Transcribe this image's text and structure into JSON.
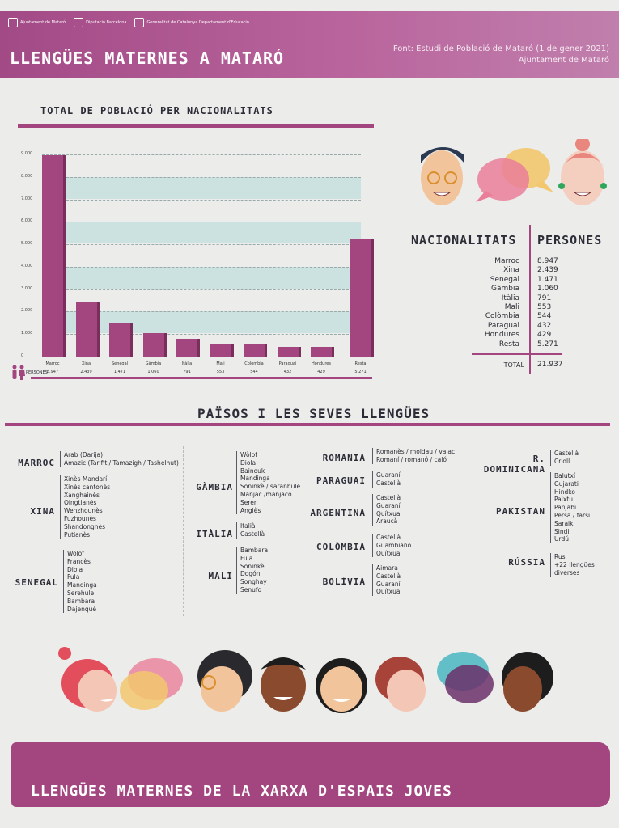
{
  "header": {
    "logos": [
      "Ajuntament de Mataró",
      "Diputació Barcelona",
      "Generalitat de Catalunya Departament d'Educació"
    ],
    "title": "LLENGÜES MATERNES A MATARÓ",
    "source_line1": "Font: Estudi de Població de Mataró (1 de gener 2021)",
    "source_line2": "Ajuntament de Mataró"
  },
  "chart_section": {
    "title": "TOTAL DE POBLACIÓ PER NACIONALITATS"
  },
  "chart_data": {
    "type": "bar",
    "title": "TOTAL DE POBLACIÓ PER NACIONALITATS",
    "categories": [
      "Marroc",
      "Xina",
      "Senegal",
      "Gàmbia",
      "Itàlia",
      "Mali",
      "Colòmbia",
      "Paraguai",
      "Hondures",
      "Resta"
    ],
    "values": [
      8947,
      2439,
      1471,
      1060,
      791,
      553,
      544,
      432,
      429,
      5271
    ],
    "value_labels": [
      "8.947",
      "2.439",
      "1.471",
      "1.060",
      "791",
      "553",
      "544",
      "432",
      "429",
      "5.271"
    ],
    "y_ticks": [
      "9.000",
      "8.000",
      "7.000",
      "6.000",
      "5.000",
      "4.000",
      "3.000",
      "2.000",
      "1.000",
      "0"
    ],
    "ylim": [
      0,
      9000
    ],
    "row_label": "PERSONES",
    "grid": true
  },
  "table": {
    "col1": "NACIONALITATS",
    "col2": "PERSONES",
    "rows": [
      {
        "name": "Marroc",
        "value": "8.947"
      },
      {
        "name": "Xina",
        "value": "2.439"
      },
      {
        "name": "Senegal",
        "value": "1.471"
      },
      {
        "name": "Gàmbia",
        "value": "1.060"
      },
      {
        "name": "Itàlia",
        "value": "791"
      },
      {
        "name": "Mali",
        "value": "553"
      },
      {
        "name": "Colòmbia",
        "value": "544"
      },
      {
        "name": "Paraguai",
        "value": "432"
      },
      {
        "name": "Hondures",
        "value": "429"
      },
      {
        "name": "Resta",
        "value": "5.271"
      }
    ],
    "total_label": "TOTAL",
    "total_value": "21.937"
  },
  "languages_section": {
    "title": "PAÏSOS I LES SEVES LLENGÜES"
  },
  "countries": {
    "marroc": {
      "name": "MARROC",
      "langs": [
        "Àrab (Darija)",
        "Amazic (Tarifit / Tamazigh / Tashelhut)"
      ]
    },
    "xina": {
      "name": "XINA",
      "langs": [
        "Xinès Mandarí",
        "Xinès cantonès",
        "Xanghainès",
        "Qingtianès",
        "Wenzhounès",
        "Fuzhounès",
        "Shandongnès",
        "Putianès"
      ]
    },
    "senegal": {
      "name": "SENEGAL",
      "langs": [
        "Wolof",
        "Francès",
        "Diola",
        "Fula",
        "Mandinga",
        "Serehule",
        "Bambara",
        "Dajenqué"
      ]
    },
    "gambia": {
      "name": "GÀMBIA",
      "langs": [
        "Wòlof",
        "Diola",
        "Bainouk",
        "Mandinga",
        "Soninkè / saranhule",
        "Manjac /manjaco",
        "Serer",
        "Anglès"
      ]
    },
    "italia": {
      "name": "ITÀLIA",
      "langs": [
        "Italià",
        "Castellà"
      ]
    },
    "mali": {
      "name": "MALI",
      "langs": [
        "Bambara",
        "Fula",
        "Soninkè",
        "Dogón",
        "Songhay",
        "Senufo"
      ]
    },
    "romania": {
      "name": "ROMANIA",
      "langs": [
        "Romanès / moldau / valac",
        "Romaní / romanó / caló"
      ]
    },
    "paraguai": {
      "name": "PARAGUAI",
      "langs": [
        "Guaraní",
        "Castellà"
      ]
    },
    "argentina": {
      "name": "ARGENTINA",
      "langs": [
        "Castellà",
        "Guaraní",
        "Quítxua",
        "Araucà"
      ]
    },
    "colombia": {
      "name": "COLÒMBIA",
      "langs": [
        "Castellà",
        "Guambiano",
        "Quítxua"
      ]
    },
    "bolivia": {
      "name": "BOLÍVIA",
      "langs": [
        "Aimara",
        "Castellà",
        "Guaraní",
        "Quítxua"
      ]
    },
    "rdominicana": {
      "name": "R. DOMINICANA",
      "langs": [
        "Castellà",
        "Crioll"
      ]
    },
    "pakistan": {
      "name": "PAKISTAN",
      "langs": [
        "Balutxí",
        "Gujarati",
        "Hindko",
        "Paixtu",
        "Panjabi",
        "Persa / farsi",
        "Saraiki",
        "Sindi",
        "Urdú"
      ]
    },
    "russia": {
      "name": "RÚSSIA",
      "langs": [
        "Rus",
        "+22 llengües diverses"
      ]
    }
  },
  "colors": {
    "accent": "#a3467f",
    "band": "#cbe2e0",
    "background": "#ecedeb"
  },
  "footer": {
    "title": "LLENGÜES MATERNES DE LA XARXA D'ESPAIS JOVES"
  }
}
